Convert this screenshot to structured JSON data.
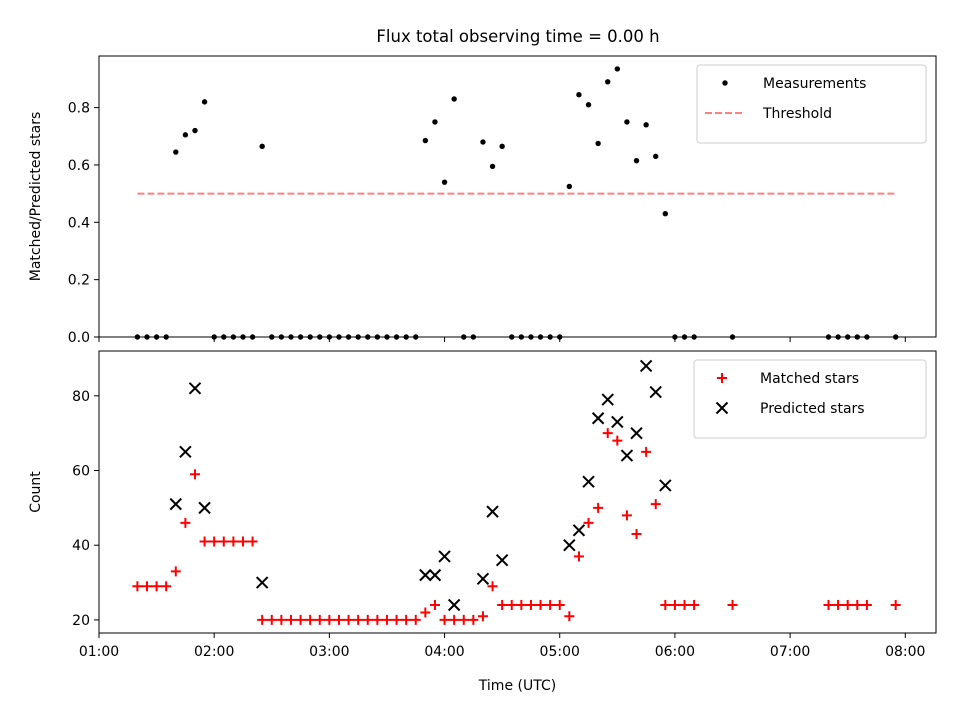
{
  "figure": {
    "title": "Flux total observing time = 0.00 h"
  },
  "chart_data": [
    {
      "type": "scatter",
      "title": "Flux total observing time = 0.00 h",
      "xlabel": "",
      "ylabel": "Matched/Predicted stars",
      "xlim": [
        "01:00",
        "08:16"
      ],
      "ylim": [
        0,
        0.98
      ],
      "xticks": [
        "01:00",
        "02:00",
        "03:00",
        "04:00",
        "05:00",
        "06:00",
        "07:00",
        "08:00"
      ],
      "yticks": [
        "0.0",
        "0.2",
        "0.4",
        "0.6",
        "0.8"
      ],
      "legend_position": "top-right",
      "grid": false,
      "series": [
        {
          "name": "Measurements",
          "kind": "scatter",
          "marker": "dot",
          "color": "#000000",
          "points": [
            [
              "01:20",
              0
            ],
            [
              "01:25",
              0
            ],
            [
              "01:30",
              0
            ],
            [
              "01:35",
              0
            ],
            [
              "01:40",
              0.645
            ],
            [
              "01:45",
              0.705
            ],
            [
              "01:50",
              0.72
            ],
            [
              "01:55",
              0.82
            ],
            [
              "02:00",
              0
            ],
            [
              "02:05",
              0
            ],
            [
              "02:10",
              0
            ],
            [
              "02:15",
              0
            ],
            [
              "02:20",
              0
            ],
            [
              "02:25",
              0.665
            ],
            [
              "02:30",
              0
            ],
            [
              "02:35",
              0
            ],
            [
              "02:40",
              0
            ],
            [
              "02:45",
              0
            ],
            [
              "02:50",
              0
            ],
            [
              "02:55",
              0
            ],
            [
              "03:00",
              0
            ],
            [
              "03:05",
              0
            ],
            [
              "03:10",
              0
            ],
            [
              "03:15",
              0
            ],
            [
              "03:20",
              0
            ],
            [
              "03:25",
              0
            ],
            [
              "03:30",
              0
            ],
            [
              "03:35",
              0
            ],
            [
              "03:40",
              0
            ],
            [
              "03:45",
              0
            ],
            [
              "03:50",
              0.685
            ],
            [
              "03:55",
              0.75
            ],
            [
              "04:00",
              0.54
            ],
            [
              "04:05",
              0.83
            ],
            [
              "04:10",
              0
            ],
            [
              "04:15",
              0
            ],
            [
              "04:20",
              0.68
            ],
            [
              "04:25",
              0.595
            ],
            [
              "04:30",
              0.665
            ],
            [
              "04:35",
              0
            ],
            [
              "04:40",
              0
            ],
            [
              "04:45",
              0
            ],
            [
              "04:50",
              0
            ],
            [
              "04:55",
              0
            ],
            [
              "05:00",
              0
            ],
            [
              "05:05",
              0.525
            ],
            [
              "05:10",
              0.845
            ],
            [
              "05:15",
              0.81
            ],
            [
              "05:20",
              0.675
            ],
            [
              "05:25",
              0.89
            ],
            [
              "05:30",
              0.935
            ],
            [
              "05:35",
              0.75
            ],
            [
              "05:40",
              0.615
            ],
            [
              "05:45",
              0.74
            ],
            [
              "05:50",
              0.63
            ],
            [
              "05:55",
              0.43
            ],
            [
              "06:00",
              0
            ],
            [
              "06:05",
              0
            ],
            [
              "06:10",
              0
            ],
            [
              "06:30",
              0
            ],
            [
              "07:20",
              0
            ],
            [
              "07:25",
              0
            ],
            [
              "07:30",
              0
            ],
            [
              "07:35",
              0
            ],
            [
              "07:40",
              0
            ],
            [
              "07:55",
              0
            ]
          ]
        },
        {
          "name": "Threshold",
          "kind": "line",
          "style": "dashed",
          "color": "#ff7f7f",
          "points": [
            [
              "01:20",
              0.5
            ],
            [
              "07:55",
              0.5
            ]
          ]
        }
      ]
    },
    {
      "type": "scatter",
      "title": "",
      "xlabel": "Time (UTC)",
      "ylabel": "Count",
      "xlim": [
        "01:00",
        "08:16"
      ],
      "ylim": [
        16.5,
        92
      ],
      "xticks": [
        "01:00",
        "02:00",
        "03:00",
        "04:00",
        "05:00",
        "06:00",
        "07:00",
        "08:00"
      ],
      "yticks": [
        "20",
        "40",
        "60",
        "80"
      ],
      "legend_position": "top-right",
      "grid": false,
      "series": [
        {
          "name": "Matched stars",
          "kind": "scatter",
          "marker": "plus",
          "color": "#ff0000",
          "points": [
            [
              "01:20",
              29
            ],
            [
              "01:25",
              29
            ],
            [
              "01:30",
              29
            ],
            [
              "01:35",
              29
            ],
            [
              "01:40",
              33
            ],
            [
              "01:45",
              46
            ],
            [
              "01:50",
              59
            ],
            [
              "01:55",
              41
            ],
            [
              "02:00",
              41
            ],
            [
              "02:05",
              41
            ],
            [
              "02:10",
              41
            ],
            [
              "02:15",
              41
            ],
            [
              "02:20",
              41
            ],
            [
              "02:25",
              20
            ],
            [
              "02:30",
              20
            ],
            [
              "02:35",
              20
            ],
            [
              "02:40",
              20
            ],
            [
              "02:45",
              20
            ],
            [
              "02:50",
              20
            ],
            [
              "02:55",
              20
            ],
            [
              "03:00",
              20
            ],
            [
              "03:05",
              20
            ],
            [
              "03:10",
              20
            ],
            [
              "03:15",
              20
            ],
            [
              "03:20",
              20
            ],
            [
              "03:25",
              20
            ],
            [
              "03:30",
              20
            ],
            [
              "03:35",
              20
            ],
            [
              "03:40",
              20
            ],
            [
              "03:45",
              20
            ],
            [
              "03:50",
              22
            ],
            [
              "03:55",
              24
            ],
            [
              "04:00",
              20
            ],
            [
              "04:05",
              20
            ],
            [
              "04:10",
              20
            ],
            [
              "04:15",
              20
            ],
            [
              "04:20",
              21
            ],
            [
              "04:25",
              29
            ],
            [
              "04:30",
              24
            ],
            [
              "04:35",
              24
            ],
            [
              "04:40",
              24
            ],
            [
              "04:45",
              24
            ],
            [
              "04:50",
              24
            ],
            [
              "04:55",
              24
            ],
            [
              "05:00",
              24
            ],
            [
              "05:05",
              21
            ],
            [
              "05:10",
              37
            ],
            [
              "05:15",
              46
            ],
            [
              "05:20",
              50
            ],
            [
              "05:25",
              70
            ],
            [
              "05:30",
              68
            ],
            [
              "05:35",
              48
            ],
            [
              "05:40",
              43
            ],
            [
              "05:45",
              65
            ],
            [
              "05:50",
              51
            ],
            [
              "05:55",
              24
            ],
            [
              "06:00",
              24
            ],
            [
              "06:05",
              24
            ],
            [
              "06:10",
              24
            ],
            [
              "06:30",
              24
            ],
            [
              "07:20",
              24
            ],
            [
              "07:25",
              24
            ],
            [
              "07:30",
              24
            ],
            [
              "07:35",
              24
            ],
            [
              "07:40",
              24
            ],
            [
              "07:55",
              24
            ]
          ]
        },
        {
          "name": "Predicted stars",
          "kind": "scatter",
          "marker": "x",
          "color": "#000000",
          "points": [
            [
              "01:40",
              51
            ],
            [
              "01:45",
              65
            ],
            [
              "01:50",
              82
            ],
            [
              "01:55",
              50
            ],
            [
              "02:25",
              30
            ],
            [
              "03:50",
              32
            ],
            [
              "03:55",
              32
            ],
            [
              "04:00",
              37
            ],
            [
              "04:05",
              24
            ],
            [
              "04:20",
              31
            ],
            [
              "04:25",
              49
            ],
            [
              "04:30",
              36
            ],
            [
              "05:05",
              40
            ],
            [
              "05:10",
              44
            ],
            [
              "05:15",
              57
            ],
            [
              "05:20",
              74
            ],
            [
              "05:25",
              79
            ],
            [
              "05:30",
              73
            ],
            [
              "05:35",
              64
            ],
            [
              "05:40",
              70
            ],
            [
              "05:45",
              88
            ],
            [
              "05:50",
              81
            ],
            [
              "05:55",
              56
            ]
          ]
        }
      ]
    }
  ]
}
